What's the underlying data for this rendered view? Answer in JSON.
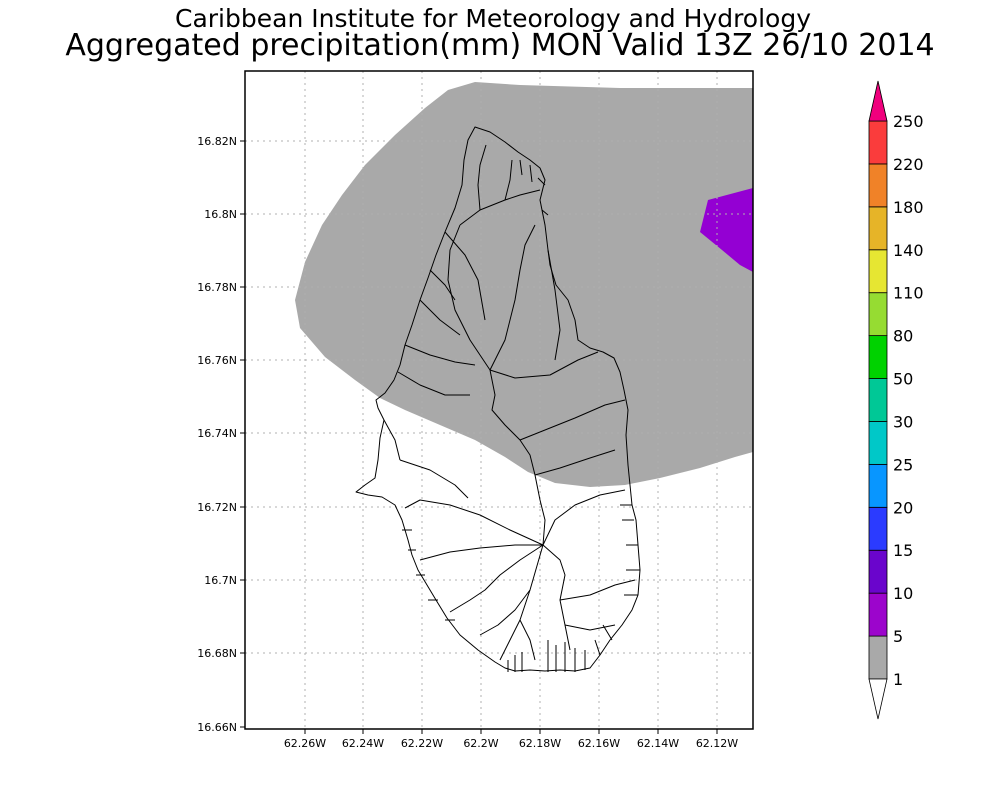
{
  "header": {
    "line1": "Caribbean Institute for Meteorology and Hydrology",
    "line2": "Aggregated precipitation(mm) MON Valid 13Z 26/10 2014"
  },
  "map": {
    "lat_ticks": [
      "16.82N",
      "16.8N",
      "16.78N",
      "16.76N",
      "16.74N",
      "16.72N",
      "16.7N",
      "16.68N",
      "16.66N"
    ],
    "lon_ticks": [
      "62.26W",
      "62.24W",
      "62.22W",
      "62.2W",
      "62.18W",
      "62.16W",
      "62.14W",
      "62.12W"
    ],
    "lat_range": [
      "16.66N",
      "16.835N"
    ],
    "lon_range": [
      "62.278W",
      "62.105W"
    ],
    "grid": "dotted",
    "precip_areas": [
      {
        "class": "1-5 mm",
        "color": "#a9a9a9"
      },
      {
        "class": "5-10 mm",
        "color": "#9400d3"
      }
    ]
  },
  "colorbar": {
    "levels": [
      "1",
      "5",
      "10",
      "15",
      "20",
      "25",
      "30",
      "50",
      "80",
      "110",
      "140",
      "180",
      "220",
      "250"
    ],
    "colors": [
      "#a9a9a9",
      "#9c05cc",
      "#6a05cc",
      "#2b3bff",
      "#0896ff",
      "#00c8c8",
      "#00c896",
      "#00d200",
      "#96dc32",
      "#e6e632",
      "#e6b428",
      "#f08228",
      "#fa3c3c",
      "#f0007d"
    ],
    "under_color": "#ffffff",
    "over_color": "#f0007d"
  }
}
